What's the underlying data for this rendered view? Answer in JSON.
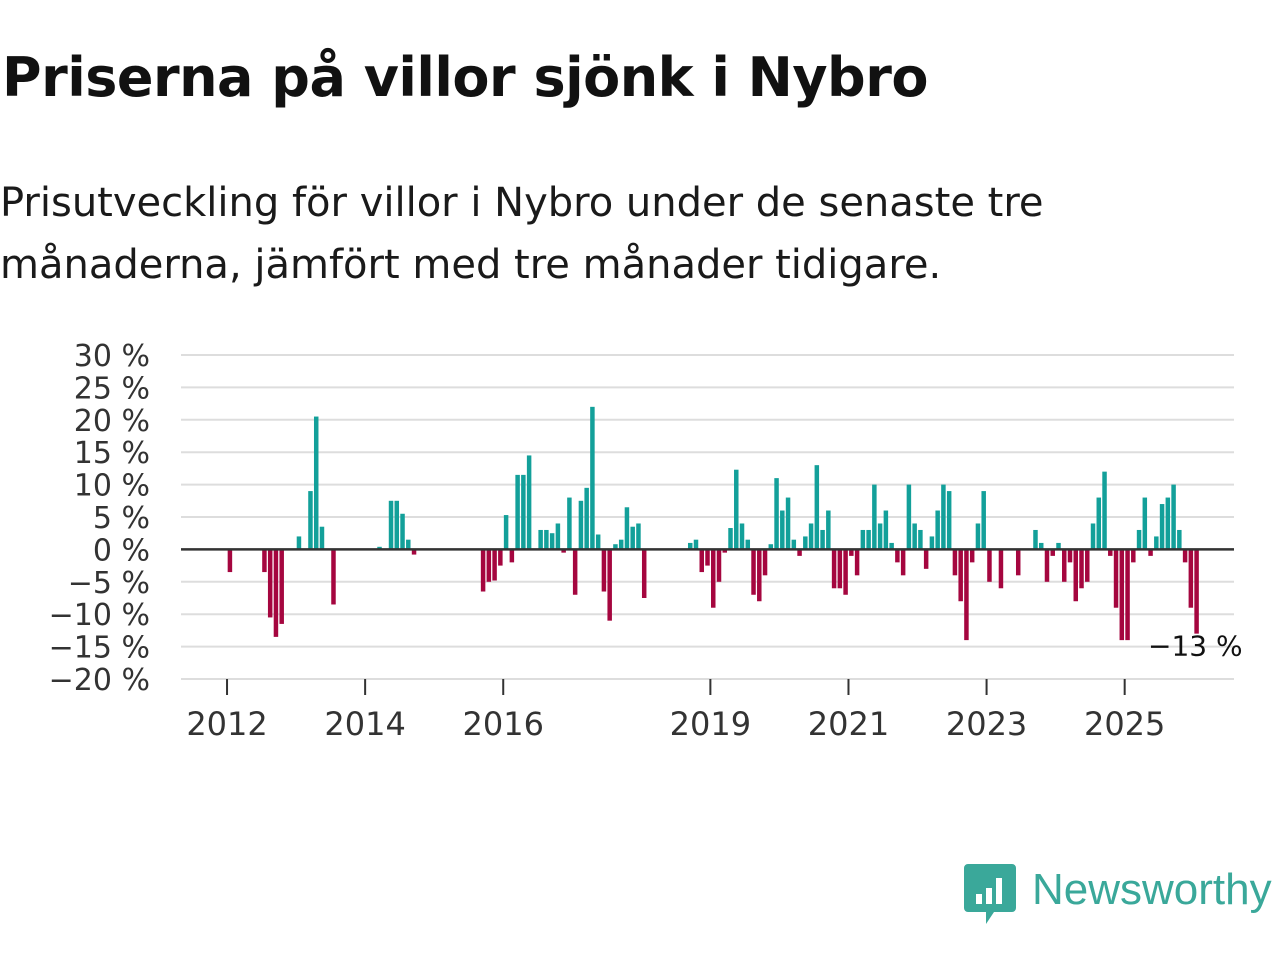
{
  "title": "Priserna på villor sjönk i Nybro",
  "subtitle": "Prisutveckling för villor i Nybro under de senaste tre månaderna, jämfört med tre månader tidigare.",
  "brand": {
    "name": "Newsworthy",
    "color": "#3aa89a",
    "icon": "newsworthy-logo-icon"
  },
  "colors": {
    "positive": "#13a09a",
    "negative": "#a5063f",
    "grid": "#dddddd",
    "zero": "#333333"
  },
  "chart_data": {
    "type": "bar",
    "title": "Priserna på villor sjönk i Nybro",
    "ylabel": "",
    "xlabel": "",
    "ylim": [
      -20,
      30
    ],
    "xlim": [
      "2011-05",
      "2026-08"
    ],
    "y_ticks": [
      30,
      25,
      20,
      15,
      10,
      5,
      0,
      -5,
      -10,
      -15,
      -20
    ],
    "y_tick_labels": [
      "30 %",
      "25 %",
      "20 %",
      "15 %",
      "10 %",
      "5 %",
      "0 %",
      "−5 %",
      "−10 %",
      "−15 %",
      "−20 %"
    ],
    "x_tick_labels": [
      "2012",
      "2014",
      "2016",
      "2019",
      "2021",
      "2023",
      "2025"
    ],
    "x_tick_positions": [
      "2012-01",
      "2014-01",
      "2016-01",
      "2019-01",
      "2021-01",
      "2023-01",
      "2025-01"
    ],
    "last_label": "−13 %",
    "series": [
      {
        "name": "Prisutveckling",
        "points": [
          [
            "2012-01",
            -3.5
          ],
          [
            "2012-07",
            -3.5
          ],
          [
            "2012-08",
            -10.5
          ],
          [
            "2012-09",
            -13.5
          ],
          [
            "2012-10",
            -11.5
          ],
          [
            "2013-01",
            2.0
          ],
          [
            "2013-03",
            9.0
          ],
          [
            "2013-04",
            20.5
          ],
          [
            "2013-05",
            3.5
          ],
          [
            "2013-07",
            -8.5
          ],
          [
            "2014-03",
            0.4
          ],
          [
            "2014-05",
            7.5
          ],
          [
            "2014-06",
            7.5
          ],
          [
            "2014-07",
            5.5
          ],
          [
            "2014-08",
            1.5
          ],
          [
            "2014-09",
            -0.8
          ],
          [
            "2015-09",
            -6.5
          ],
          [
            "2015-10",
            -5.0
          ],
          [
            "2015-11",
            -4.8
          ],
          [
            "2015-12",
            -2.5
          ],
          [
            "2016-01",
            5.3
          ],
          [
            "2016-02",
            -2.0
          ],
          [
            "2016-03",
            11.5
          ],
          [
            "2016-04",
            11.5
          ],
          [
            "2016-05",
            14.5
          ],
          [
            "2016-07",
            3.0
          ],
          [
            "2016-08",
            3.0
          ],
          [
            "2016-09",
            2.5
          ],
          [
            "2016-10",
            4.0
          ],
          [
            "2016-11",
            -0.5
          ],
          [
            "2016-12",
            8.0
          ],
          [
            "2017-01",
            -7.0
          ],
          [
            "2017-02",
            7.5
          ],
          [
            "2017-03",
            9.5
          ],
          [
            "2017-04",
            22.0
          ],
          [
            "2017-05",
            2.3
          ],
          [
            "2017-06",
            -6.5
          ],
          [
            "2017-07",
            -11.0
          ],
          [
            "2017-08",
            0.8
          ],
          [
            "2017-09",
            1.5
          ],
          [
            "2017-10",
            6.5
          ],
          [
            "2017-11",
            3.5
          ],
          [
            "2017-12",
            4.0
          ],
          [
            "2018-01",
            -7.5
          ],
          [
            "2018-09",
            1.0
          ],
          [
            "2018-10",
            1.5
          ],
          [
            "2018-11",
            -3.5
          ],
          [
            "2018-12",
            -2.5
          ],
          [
            "2019-01",
            -9.0
          ],
          [
            "2019-02",
            -5.0
          ],
          [
            "2019-03",
            -0.5
          ],
          [
            "2019-04",
            3.3
          ],
          [
            "2019-05",
            12.3
          ],
          [
            "2019-06",
            4.0
          ],
          [
            "2019-07",
            1.5
          ],
          [
            "2019-08",
            -7.0
          ],
          [
            "2019-09",
            -8.0
          ],
          [
            "2019-10",
            -4.0
          ],
          [
            "2019-11",
            0.8
          ],
          [
            "2019-12",
            11.0
          ],
          [
            "2020-01",
            6.0
          ],
          [
            "2020-02",
            8.0
          ],
          [
            "2020-03",
            1.5
          ],
          [
            "2020-04",
            -1.0
          ],
          [
            "2020-05",
            2.0
          ],
          [
            "2020-06",
            4.0
          ],
          [
            "2020-07",
            13.0
          ],
          [
            "2020-08",
            3.0
          ],
          [
            "2020-09",
            6.0
          ],
          [
            "2020-10",
            -6.0
          ],
          [
            "2020-11",
            -6.0
          ],
          [
            "2020-12",
            -7.0
          ],
          [
            "2021-01",
            -1.0
          ],
          [
            "2021-02",
            -4.0
          ],
          [
            "2021-03",
            3.0
          ],
          [
            "2021-04",
            3.0
          ],
          [
            "2021-05",
            10.0
          ],
          [
            "2021-06",
            4.0
          ],
          [
            "2021-07",
            6.0
          ],
          [
            "2021-08",
            1.0
          ],
          [
            "2021-09",
            -2.0
          ],
          [
            "2021-10",
            -4.0
          ],
          [
            "2021-11",
            10.0
          ],
          [
            "2021-12",
            4.0
          ],
          [
            "2022-01",
            3.0
          ],
          [
            "2022-02",
            -3.0
          ],
          [
            "2022-03",
            2.0
          ],
          [
            "2022-04",
            6.0
          ],
          [
            "2022-05",
            10.0
          ],
          [
            "2022-06",
            9.0
          ],
          [
            "2022-07",
            -4.0
          ],
          [
            "2022-08",
            -8.0
          ],
          [
            "2022-09",
            -14.0
          ],
          [
            "2022-10",
            -2.0
          ],
          [
            "2022-11",
            4.0
          ],
          [
            "2022-12",
            9.0
          ],
          [
            "2023-01",
            -5.0
          ],
          [
            "2023-03",
            -6.0
          ],
          [
            "2023-06",
            -4.0
          ],
          [
            "2023-09",
            3.0
          ],
          [
            "2023-10",
            1.0
          ],
          [
            "2023-11",
            -5.0
          ],
          [
            "2023-12",
            -1.0
          ],
          [
            "2024-01",
            1.0
          ],
          [
            "2024-02",
            -5.0
          ],
          [
            "2024-03",
            -2.0
          ],
          [
            "2024-04",
            -8.0
          ],
          [
            "2024-05",
            -6.0
          ],
          [
            "2024-06",
            -5.0
          ],
          [
            "2024-07",
            4.0
          ],
          [
            "2024-08",
            8.0
          ],
          [
            "2024-09",
            12.0
          ],
          [
            "2024-10",
            -1.0
          ],
          [
            "2024-11",
            -9.0
          ],
          [
            "2024-12",
            -14.0
          ],
          [
            "2025-01",
            -14.0
          ],
          [
            "2025-02",
            -2.0
          ],
          [
            "2025-03",
            3.0
          ],
          [
            "2025-04",
            8.0
          ],
          [
            "2025-05",
            -1.0
          ],
          [
            "2025-06",
            2.0
          ],
          [
            "2025-07",
            7.0
          ],
          [
            "2025-08",
            8.0
          ],
          [
            "2025-09",
            10.0
          ],
          [
            "2025-10",
            3.0
          ],
          [
            "2025-11",
            -2.0
          ],
          [
            "2025-12",
            -9.0
          ],
          [
            "2026-01",
            -13.0
          ]
        ]
      }
    ]
  }
}
